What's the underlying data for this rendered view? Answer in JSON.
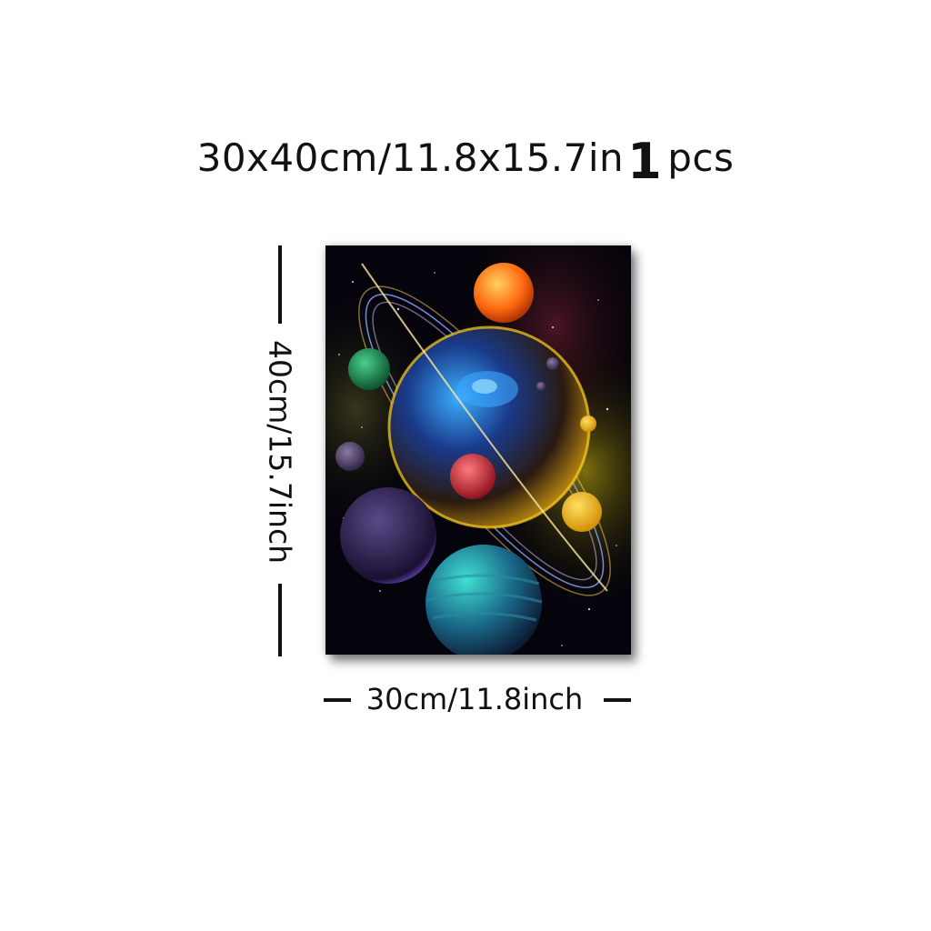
{
  "header": {
    "size_text": "30x40cm/11.8x15.7in",
    "quantity_number": "1",
    "quantity_unit": "pcs"
  },
  "dimensions": {
    "height_label": "40cm/15.7inch",
    "width_label": "30cm/11.8inch"
  },
  "artwork": {
    "subject": "space planets canvas print",
    "colors": {
      "background": "#05040c",
      "accent_orange": "#ff7a1a",
      "accent_blue": "#3a8cff",
      "accent_yellow": "#ffd21a",
      "accent_red": "#e0303a"
    }
  }
}
